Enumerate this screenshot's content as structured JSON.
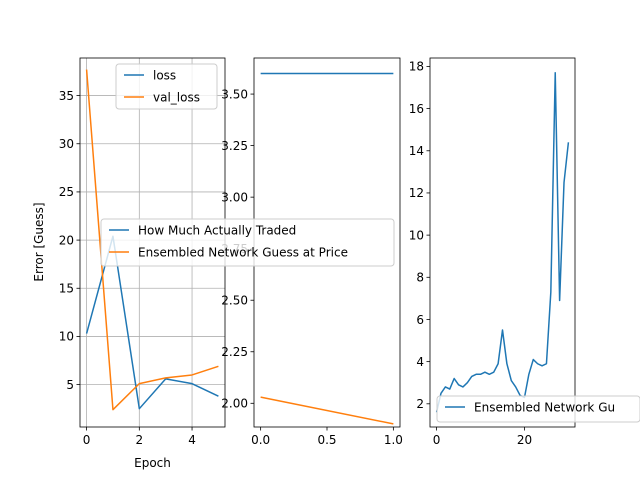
{
  "chart_data": [
    {
      "type": "line",
      "xlabel": "Epoch",
      "ylabel": "Error [Guess]",
      "xlim": [
        -0.25,
        5.25
      ],
      "ylim": [
        0.6,
        38.9
      ],
      "grid": true,
      "xticks": [
        0,
        2,
        4
      ],
      "yticks": [
        5,
        10,
        15,
        20,
        25,
        30,
        35
      ],
      "legend_position": "top-right",
      "series": [
        {
          "name": "loss",
          "color": "#1f77b4",
          "x": [
            0,
            1,
            2,
            3,
            4,
            5
          ],
          "values": [
            10.3,
            20.4,
            2.5,
            5.6,
            5.1,
            3.8
          ]
        },
        {
          "name": "val_loss",
          "color": "#ff7f0e",
          "x": [
            0,
            1,
            2,
            3,
            4,
            5
          ],
          "values": [
            37.7,
            2.4,
            5.1,
            5.7,
            6.0,
            6.9
          ]
        }
      ]
    },
    {
      "type": "line",
      "xlabel": "",
      "ylabel": "",
      "xlim": [
        -0.05,
        1.05
      ],
      "ylim": [
        1.885,
        3.675
      ],
      "grid": false,
      "xticks": [
        0.0,
        0.5,
        1.0
      ],
      "xtick_labels": [
        "0.0",
        "0.5",
        "1.0"
      ],
      "yticks": [
        2.0,
        2.25,
        2.5,
        2.75,
        3.0,
        3.25,
        3.5
      ],
      "ytick_labels": [
        "2.00",
        "2.25",
        "2.50",
        "2.75",
        "3.00",
        "3.25",
        "3.50"
      ],
      "legend_position": "center",
      "series": [
        {
          "name": "How Much Actually Traded",
          "color": "#1f77b4",
          "x": [
            0,
            1
          ],
          "values": [
            3.6,
            3.6
          ]
        },
        {
          "name": "Ensembled Network Guess at Price",
          "color": "#ff7f0e",
          "x": [
            0,
            1
          ],
          "values": [
            2.03,
            1.9
          ]
        }
      ]
    },
    {
      "type": "line",
      "xlabel": "",
      "ylabel": "",
      "xlim": [
        -1.5,
        31.5
      ],
      "ylim": [
        0.9,
        18.4
      ],
      "grid": false,
      "xticks": [
        0,
        20
      ],
      "yticks": [
        2,
        4,
        6,
        8,
        10,
        12,
        14,
        16,
        18
      ],
      "legend_position": "lower-right",
      "legend_label": "Ensembled Network Gu",
      "series": [
        {
          "name": "Ensembled Network Guess at Price",
          "color": "#1f77b4",
          "x": [
            0,
            1,
            2,
            3,
            4,
            5,
            6,
            7,
            8,
            9,
            10,
            11,
            12,
            13,
            14,
            15,
            16,
            17,
            18,
            19,
            20,
            21,
            22,
            23,
            24,
            25,
            26,
            27,
            28,
            29,
            30
          ],
          "values": [
            1.6,
            2.5,
            2.8,
            2.7,
            3.2,
            2.9,
            2.8,
            3.0,
            3.3,
            3.4,
            3.4,
            3.5,
            3.4,
            3.5,
            3.9,
            5.5,
            3.9,
            3.1,
            2.8,
            2.4,
            2.3,
            3.4,
            4.1,
            3.9,
            3.8,
            3.9,
            7.3,
            17.7,
            6.9,
            12.5,
            14.4
          ]
        }
      ]
    }
  ]
}
